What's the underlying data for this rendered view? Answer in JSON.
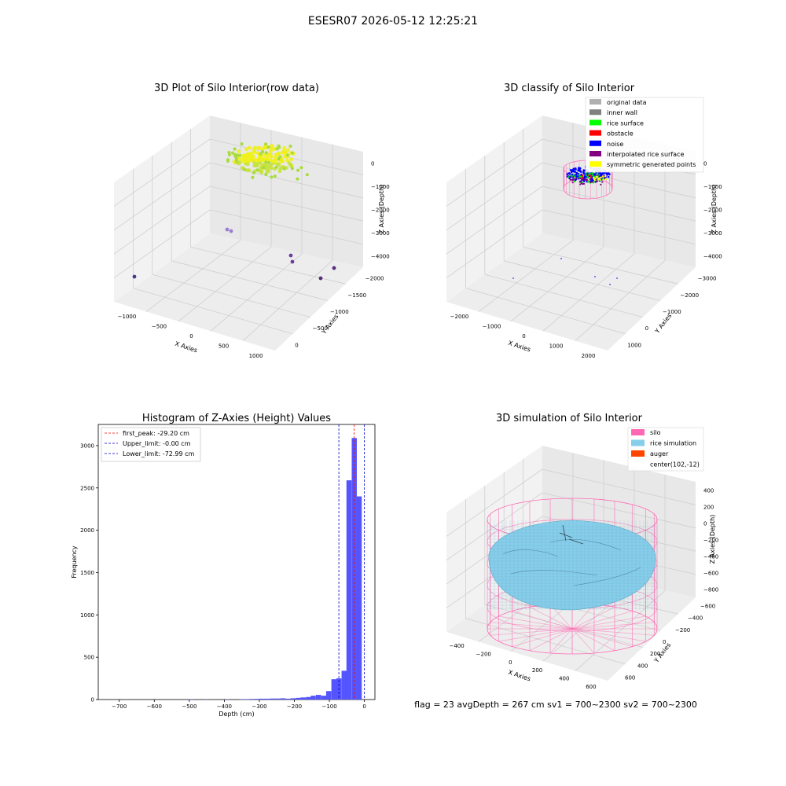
{
  "figure": {
    "suptitle": "ESESR07 2026-05-12 12:25:21",
    "status_line": "flag = 23   avgDepth = 267 cm  sv1 = 700~2300  sv2 = 700~2300"
  },
  "colors": {
    "silo": "#ff69b4",
    "rice_simulation": "#87ceeb",
    "auger": "#ff4500",
    "original_data": "#b0b0b0",
    "inner_wall": "#808080",
    "rice_surface": "#00ff00",
    "obstacle": "#ff0000",
    "noise": "#0000ff",
    "interpolated_rice_surface": "#800080",
    "symmetric_generated_points": "#ffff00",
    "histogram_bar": "#5555ff",
    "first_peak_line": "#ff0000",
    "limit_line": "#0000cc",
    "grid": "#cfcfcf",
    "pane": "#f2f2f2"
  },
  "chart_data": [
    {
      "type": "scatter",
      "title": "3D Plot of Silo Interior(row data)",
      "xlabel": "X Axies",
      "ylabel": "Y Axies",
      "zlabel": "Z Axies (Depth)",
      "x_ticks": [
        "−1000",
        "−500",
        "0",
        "500",
        "1000"
      ],
      "y_ticks": [
        "0",
        "−500",
        "−1000",
        "−1500",
        "−2000"
      ],
      "z_ticks": [
        "0",
        "−1000",
        "−2000",
        "−3000",
        "−4000"
      ],
      "colormap": "viridis (by depth)",
      "outlier_points": [
        {
          "x": -1100,
          "y": -1600,
          "z": -4300
        },
        {
          "x": 250,
          "y": -300,
          "z": -2900
        },
        {
          "x": 300,
          "y": -350,
          "z": -2950
        },
        {
          "x": 700,
          "y": -1300,
          "z": -3700
        },
        {
          "x": 720,
          "y": -1350,
          "z": -3850
        },
        {
          "x": 1050,
          "y": -1800,
          "z": -3900
        },
        {
          "x": 1080,
          "y": -1500,
          "z": -3600
        }
      ]
    },
    {
      "type": "scatter",
      "title": "3D classify of Silo Interior",
      "xlabel": "X Axies",
      "ylabel": "Y Axies",
      "zlabel": "Z Axies (Depth)",
      "x_ticks": [
        "−2000",
        "−1000",
        "0",
        "1000",
        "2000"
      ],
      "y_ticks": [
        "1000",
        "0",
        "−1000",
        "−2000",
        "−3000"
      ],
      "z_ticks": [
        "0",
        "−1000",
        "−2000",
        "−3000",
        "−4000"
      ],
      "legend": [
        {
          "label": "original data",
          "color": "#b0b0b0"
        },
        {
          "label": "inner wall",
          "color": "#808080"
        },
        {
          "label": "rice surface",
          "color": "#00ff00"
        },
        {
          "label": "obstacle",
          "color": "#ff0000"
        },
        {
          "label": "noise",
          "color": "#0000ff"
        },
        {
          "label": "interpolated rice surface",
          "color": "#800080"
        },
        {
          "label": "symmetric generated points",
          "color": "#ffff00"
        }
      ],
      "legend_position": "top-right"
    },
    {
      "type": "bar",
      "title": "Histogram of Z-Axies (Height) Values",
      "xlabel": "Depth (cm)",
      "ylabel": "Frequency",
      "xlim": [
        -760,
        30
      ],
      "ylim": [
        0,
        3250
      ],
      "x_ticks": [
        "−700",
        "−600",
        "−500",
        "−400",
        "−300",
        "−200",
        "−100",
        "0"
      ],
      "y_ticks": [
        "0",
        "500",
        "1000",
        "1500",
        "2000",
        "2500",
        "3000"
      ],
      "bin_width": 14.6,
      "bins": [
        {
          "x": -496,
          "v": 3
        },
        {
          "x": -452,
          "v": 2
        },
        {
          "x": -393,
          "v": 3
        },
        {
          "x": -350,
          "v": 5
        },
        {
          "x": -335,
          "v": 5
        },
        {
          "x": -321,
          "v": 7
        },
        {
          "x": -306,
          "v": 8
        },
        {
          "x": -291,
          "v": 10
        },
        {
          "x": -277,
          "v": 10
        },
        {
          "x": -262,
          "v": 12
        },
        {
          "x": -248,
          "v": 12
        },
        {
          "x": -233,
          "v": 15
        },
        {
          "x": -219,
          "v": 10
        },
        {
          "x": -204,
          "v": 15
        },
        {
          "x": -189,
          "v": 20
        },
        {
          "x": -175,
          "v": 25
        },
        {
          "x": -160,
          "v": 30
        },
        {
          "x": -146,
          "v": 45
        },
        {
          "x": -131,
          "v": 55
        },
        {
          "x": -116,
          "v": 45
        },
        {
          "x": -102,
          "v": 100
        },
        {
          "x": -87,
          "v": 240
        },
        {
          "x": -73,
          "v": 250
        },
        {
          "x": -58,
          "v": 340
        },
        {
          "x": -44,
          "v": 2590
        },
        {
          "x": -29,
          "v": 3090
        },
        {
          "x": -15,
          "v": 2400
        }
      ],
      "vlines": [
        {
          "label": "first_peak: -29.20 cm",
          "x": -29.2,
          "color": "#ff0000"
        },
        {
          "label": "Upper_limit: -0.00 cm",
          "x": 0,
          "color": "#0000cc"
        },
        {
          "label": "Lower_limit: -72.99 cm",
          "x": -72.99,
          "color": "#0000cc"
        }
      ],
      "legend_position": "top-left"
    },
    {
      "type": "area",
      "title": "3D simulation of Silo Interior",
      "xlabel": "X Axies",
      "ylabel": "Y Axies",
      "zlabel": "Z Axies (Depth)",
      "x_ticks": [
        "−400",
        "−200",
        "0",
        "200",
        "400",
        "600"
      ],
      "y_ticks": [
        "600",
        "400",
        "200",
        "0",
        "−200",
        "−400",
        "−600"
      ],
      "z_ticks": [
        "400",
        "200",
        "0",
        "−200",
        "−400",
        "−600",
        "−800"
      ],
      "legend": [
        {
          "label": "silo",
          "color": "#ff69b4"
        },
        {
          "label": "rice simulation",
          "color": "#87ceeb"
        },
        {
          "label": "auger",
          "color": "#ff4500"
        },
        {
          "label": "center(102,-12)",
          "color": ""
        }
      ],
      "legend_position": "top-right"
    }
  ]
}
